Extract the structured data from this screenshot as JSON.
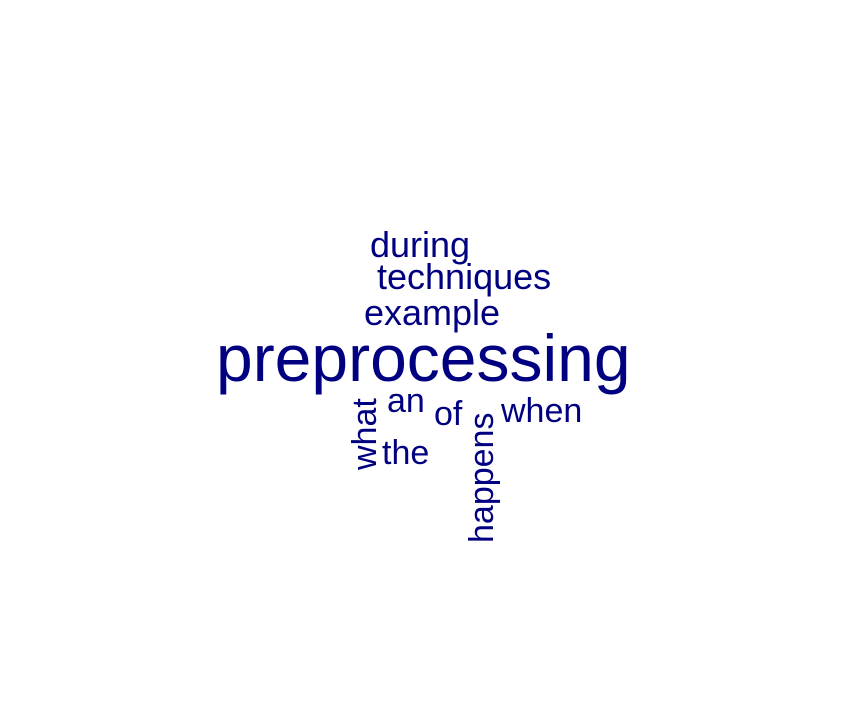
{
  "word_cloud": {
    "color": "#000080",
    "words": {
      "during": "during",
      "techniques": "techniques",
      "example": "example",
      "preprocessing": "preprocessing",
      "an": "an",
      "of": "of",
      "when": "when",
      "what": "what",
      "the": "the",
      "happens": "happens"
    }
  }
}
